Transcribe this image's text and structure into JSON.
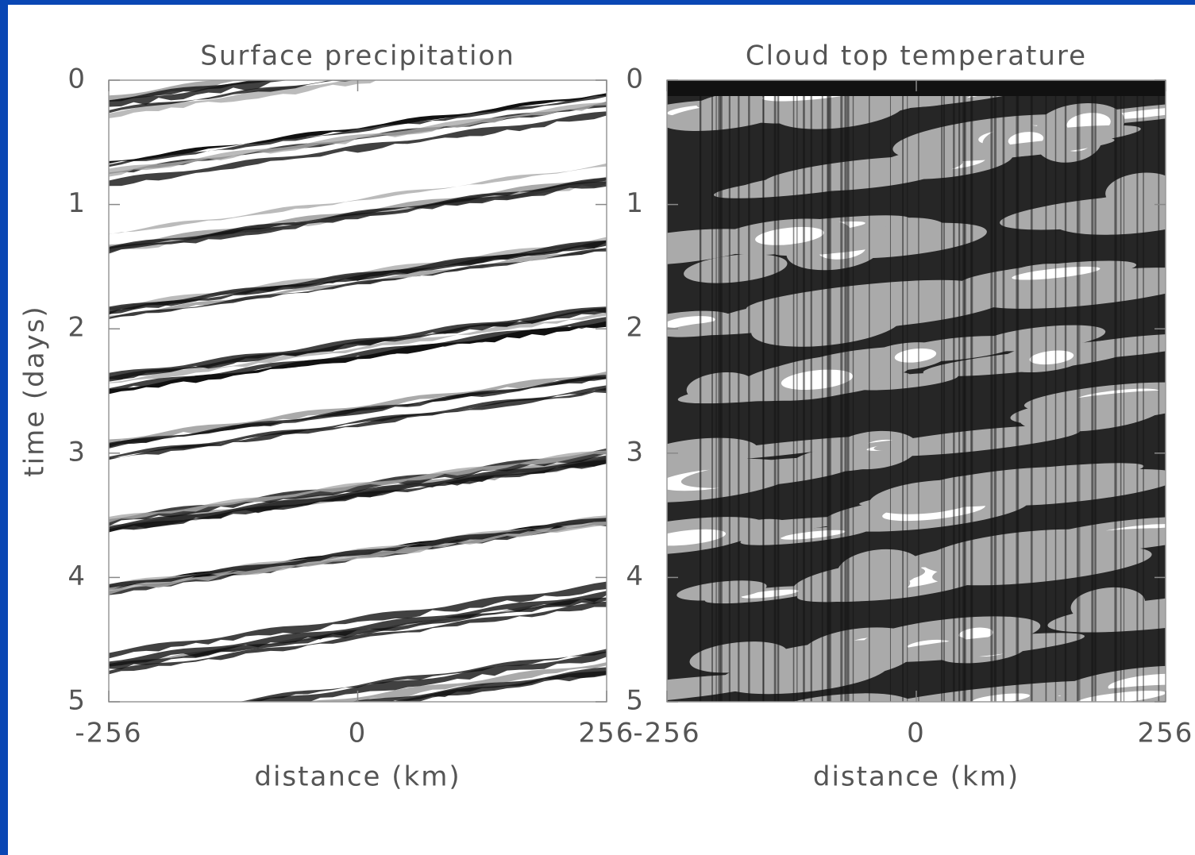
{
  "chart_data": [
    {
      "type": "heatmap",
      "title": "Surface precipitation",
      "xlabel": "distance (km)",
      "ylabel": "time (days)",
      "xlim": [
        -256,
        256
      ],
      "xticks": [
        -256,
        0,
        256
      ],
      "ylim": [
        0,
        5
      ],
      "yticks": [
        0,
        1,
        2,
        3,
        4,
        5
      ],
      "y_inverted": true
    },
    {
      "type": "heatmap",
      "title": "Cloud top temperature",
      "xlabel": "distance (km)",
      "xlim": [
        -256,
        256
      ],
      "xticks": [
        -256,
        0,
        256
      ],
      "ylim": [
        0,
        5
      ],
      "yticks": [
        0,
        1,
        2,
        3,
        4,
        5
      ],
      "y_inverted": true
    }
  ]
}
